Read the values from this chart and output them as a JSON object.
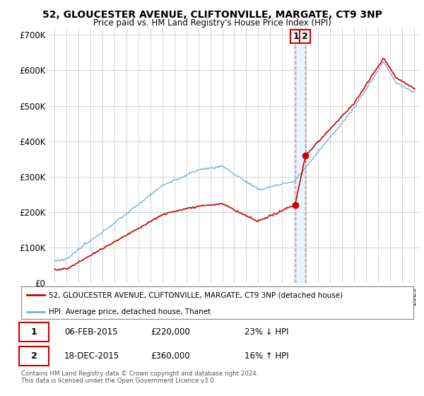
{
  "title_line1": "52, GLOUCESTER AVENUE, CLIFTONVILLE, MARGATE, CT9 3NP",
  "title_line2": "Price paid vs. HM Land Registry's House Price Index (HPI)",
  "ylabel_ticks": [
    "£0",
    "£100K",
    "£200K",
    "£300K",
    "£400K",
    "£500K",
    "£600K",
    "£700K"
  ],
  "ytick_values": [
    0,
    100000,
    200000,
    300000,
    400000,
    500000,
    600000,
    700000
  ],
  "ylim": [
    0,
    720000
  ],
  "xlim_start": 1994.5,
  "xlim_end": 2025.5,
  "transaction1_date": 2015.09,
  "transaction1_price": 220000,
  "transaction2_date": 2015.96,
  "transaction2_price": 360000,
  "vline1_x": 2015.09,
  "vline2_x": 2015.96,
  "legend_red": "52, GLOUCESTER AVENUE, CLIFTONVILLE, MARGATE, CT9 3NP (detached house)",
  "legend_blue": "HPI: Average price, detached house, Thanet",
  "table_row1": [
    "1",
    "06-FEB-2015",
    "£220,000",
    "23% ↓ HPI"
  ],
  "table_row2": [
    "2",
    "18-DEC-2015",
    "£360,000",
    "16% ↑ HPI"
  ],
  "footnote": "Contains HM Land Registry data © Crown copyright and database right 2024.\nThis data is licensed under the Open Government Licence v3.0.",
  "red_color": "#cc0000",
  "blue_color": "#7ab0d4",
  "vline_color": "#cc6666",
  "shade_color": "#ddeeff",
  "grid_color": "#cccccc",
  "background_color": "#ffffff"
}
